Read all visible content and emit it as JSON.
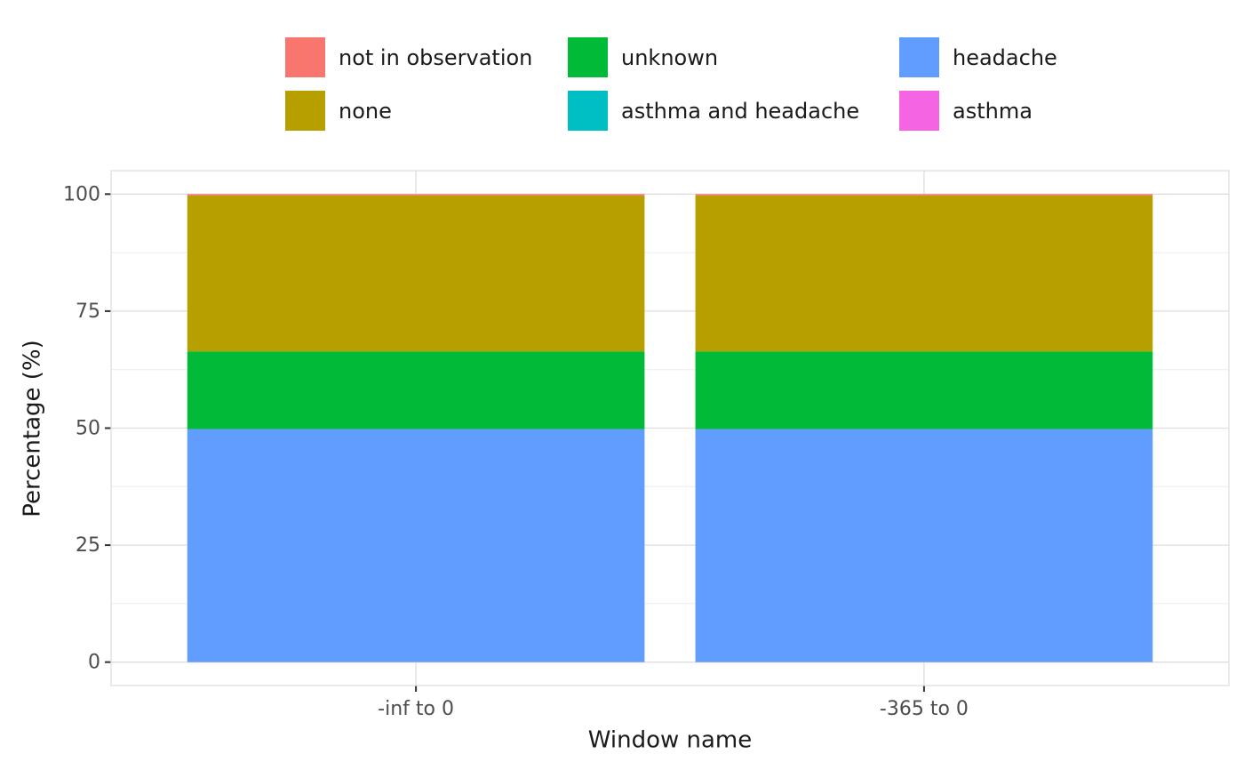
{
  "chart_data": {
    "type": "stacked_bar",
    "x_label": "Window name",
    "y_label": "Percentage (%)",
    "categories": [
      "-inf to 0",
      "-365 to 0"
    ],
    "series": [
      {
        "name": "not in observation",
        "color": "#F8766D",
        "values": [
          0.3,
          0.3
        ]
      },
      {
        "name": "none",
        "color": "#B79F00",
        "values": [
          33.3,
          33.3
        ]
      },
      {
        "name": "unknown",
        "color": "#00BA38",
        "values": [
          16.6,
          16.6
        ]
      },
      {
        "name": "asthma and headache",
        "color": "#00BFC4",
        "values": [
          0,
          0
        ]
      },
      {
        "name": "headache",
        "color": "#619CFF",
        "values": [
          49.8,
          49.8
        ]
      },
      {
        "name": "asthma",
        "color": "#F564E3",
        "values": [
          0,
          0
        ]
      }
    ],
    "ylim": [
      -5,
      105
    ],
    "yticks": [
      0,
      25,
      50,
      75,
      100
    ],
    "grid": true,
    "legend": "top"
  }
}
